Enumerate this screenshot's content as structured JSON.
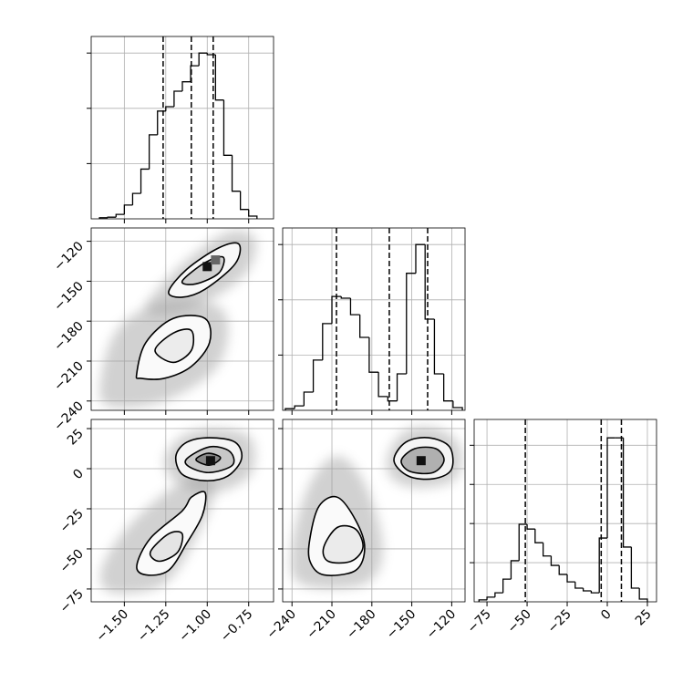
{
  "chart_data": [
    {
      "type": "histogram",
      "bins": [
        -1.65,
        -1.6,
        -1.55,
        -1.5,
        -1.45,
        -1.4,
        -1.35,
        -1.3,
        -1.25,
        -1.2,
        -1.15,
        -1.1,
        -1.05,
        -1.0,
        -0.95,
        -0.9,
        -0.85,
        -0.8,
        -0.75,
        -0.7
      ],
      "counts": [
        2,
        3,
        8,
        25,
        46,
        90,
        152,
        195,
        203,
        231,
        248,
        277,
        300,
        297,
        215,
        115,
        50,
        17,
        5
      ],
      "quantiles": [
        -1.266,
        -1.096,
        -0.964
      ],
      "xlim": [
        -1.7,
        -0.6
      ],
      "xticks": [
        {
          "value": -1.5,
          "label": "−1.50"
        },
        {
          "value": -1.25,
          "label": "−1.25"
        },
        {
          "value": -1.0,
          "label": "−1.00"
        },
        {
          "value": -0.75,
          "label": "−0.75"
        }
      ],
      "xticklabels": false,
      "ylim": [
        0,
        330
      ],
      "ygrid": [
        100,
        200,
        300
      ],
      "grid": true,
      "color": "#000000"
    },
    {
      "type": "contour",
      "xlim": [
        -1.7,
        -0.6
      ],
      "ylim": [
        -247,
        -110
      ],
      "xticks": [
        {
          "value": -1.5,
          "label": "−1.50"
        },
        {
          "value": -1.25,
          "label": "−1.25"
        },
        {
          "value": -1.0,
          "label": "−1.00"
        },
        {
          "value": -0.75,
          "label": "−0.75"
        }
      ],
      "yticks": [
        {
          "value": -120,
          "label": "−120"
        },
        {
          "value": -150,
          "label": "−150"
        },
        {
          "value": -180,
          "label": "−180"
        },
        {
          "value": -210,
          "label": "−210"
        },
        {
          "value": -240,
          "label": "−240"
        }
      ],
      "xticklabels": false,
      "yticklabels": true,
      "grid": true,
      "clouds": [
        {
          "x": [
            -1.37,
            -1.151,
            -0.876,
            -0.711,
            -0.766,
            -1.041,
            -1.288
          ],
          "y": [
            -168,
            -137,
            -113,
            -118,
            -144,
            -168,
            -175
          ]
        },
        {
          "x": [
            -1.645,
            -1.535,
            -1.233,
            -0.903,
            -0.931,
            -1.26,
            -1.59
          ],
          "y": [
            -226,
            -185,
            -165,
            -172,
            -213,
            -240,
            -244
          ]
        }
      ],
      "contours": [
        {
          "x": [
            -1.233,
            -1.123,
            -0.931,
            -0.81,
            -0.832,
            -1.013,
            -1.151
          ],
          "y": [
            -158,
            -141,
            -125,
            -122,
            -137,
            -156,
            -162
          ],
          "fill": "#f8f8f8"
        },
        {
          "x": [
            -1.151,
            -1.013,
            -0.903,
            -0.931,
            -1.068
          ],
          "y": [
            -150,
            -136,
            -132,
            -144,
            -152
          ],
          "fill": "#d0d0d0"
        },
        {
          "x": [
            -1.426,
            -1.37,
            -1.205,
            -1.013,
            -0.986,
            -1.096,
            -1.26,
            -1.398
          ],
          "y": [
            -220,
            -196,
            -178,
            -178,
            -196,
            -214,
            -223,
            -223
          ],
          "fill": "#fafafa"
        },
        {
          "x": [
            -1.315,
            -1.205,
            -1.096,
            -1.096,
            -1.205
          ],
          "y": [
            -202,
            -189,
            -187,
            -202,
            -211
          ],
          "fill": "#ececec"
        }
      ],
      "peaks": {
        "x": [
          -1.0,
          -0.95
        ],
        "y": [
          -139,
          -134
        ]
      }
    },
    {
      "type": "histogram",
      "bins": [
        -245,
        -238,
        -231,
        -224,
        -217,
        -210,
        -203,
        -196,
        -189,
        -182,
        -175,
        -168,
        -161,
        -154,
        -147,
        -140,
        -133,
        -126,
        -119,
        -112
      ],
      "counts": [
        3,
        8,
        33,
        91,
        157,
        206,
        203,
        173,
        132,
        69,
        25,
        17,
        66,
        248,
        300,
        165,
        66,
        17,
        5
      ],
      "quantiles": [
        -206.6,
        -166.9,
        -138.1
      ],
      "xlim": [
        -247,
        -110
      ],
      "xticks": [
        {
          "value": -240,
          "label": "−240"
        },
        {
          "value": -210,
          "label": "−210"
        },
        {
          "value": -180,
          "label": "−180"
        },
        {
          "value": -150,
          "label": "−150"
        },
        {
          "value": -120,
          "label": "−120"
        }
      ],
      "xticklabels": false,
      "ylim": [
        0,
        330
      ],
      "ygrid": [
        100,
        200,
        300
      ],
      "grid": true,
      "color": "#000000"
    },
    {
      "type": "contour",
      "xlim": [
        -1.7,
        -0.6
      ],
      "ylim": [
        -83,
        30.7
      ],
      "xticks": [
        {
          "value": -1.5,
          "label": "−1.50"
        },
        {
          "value": -1.25,
          "label": "−1.25"
        },
        {
          "value": -1.0,
          "label": "−1.00"
        },
        {
          "value": -0.75,
          "label": "−0.75"
        }
      ],
      "yticks": [
        25,
        0,
        {
          "value": -25,
          "label": "−25"
        },
        {
          "value": -50,
          "label": "−50"
        },
        {
          "value": -75,
          "label": "−75"
        }
      ],
      "xticklabels": true,
      "yticklabels": true,
      "grid": true,
      "clouds": [
        {
          "x": [
            -1.26,
            -1.151,
            -0.958,
            -0.738,
            -0.738,
            -0.958,
            -1.178
          ],
          "y": [
            5.1,
            20.4,
            25,
            19.3,
            -3.5,
            -15,
            -9.2
          ]
        },
        {
          "x": [
            -1.645,
            -1.535,
            -1.288,
            -1.041,
            -0.958,
            -1.068,
            -1.26,
            -1.563
          ],
          "y": [
            -66.2,
            -43.4,
            -17.8,
            -3.5,
            -14.9,
            -43.4,
            -71.9,
            -77.6
          ]
        }
      ],
      "contours": [
        {
          "x": [
            -1.189,
            -1.123,
            -0.986,
            -0.832,
            -0.793,
            -0.876,
            -1.013,
            -1.151
          ],
          "y": [
            7.9,
            16.5,
            19.3,
            16.5,
            6.2,
            -4.6,
            -7.5,
            -3.5
          ],
          "fill": "#f5f5f5"
        },
        {
          "x": [
            -1.123,
            -0.986,
            -0.865,
            -0.848,
            -0.986,
            -1.107
          ],
          "y": [
            6.2,
            13.6,
            10.8,
            2.2,
            -2.4,
            1.1
          ],
          "fill": "#c8c8c8"
        },
        {
          "x": [
            -1.068,
            -0.997,
            -0.92,
            -0.986
          ],
          "y": [
            5.6,
            9.6,
            6.8,
            2.2
          ],
          "fill": "#888888"
        },
        {
          "x": [
            -1.425,
            -1.343,
            -1.151,
            -1.096,
            -1.013,
            -1.03,
            -1.123,
            -1.233,
            -1.37
          ],
          "y": [
            -60.5,
            -43.4,
            -26.3,
            -17.8,
            -14.9,
            -29.2,
            -46.3,
            -63.4,
            -66.2
          ],
          "fill": "#fafafa"
        },
        {
          "x": [
            -1.343,
            -1.233,
            -1.151,
            -1.178,
            -1.288
          ],
          "y": [
            -52,
            -40.6,
            -40.6,
            -52,
            -57.7
          ],
          "fill": "#e4e4e4"
        }
      ],
      "peaks": {
        "x": [
          -0.98
        ],
        "y": [
          5
        ]
      }
    },
    {
      "type": "contour",
      "xlim": [
        -247,
        -110
      ],
      "ylim": [
        -83,
        30.7
      ],
      "xticks": [
        {
          "value": -240,
          "label": "−240"
        },
        {
          "value": -210,
          "label": "−210"
        },
        {
          "value": -180,
          "label": "−180"
        },
        {
          "value": -150,
          "label": "−150"
        },
        {
          "value": -120,
          "label": "−120"
        }
      ],
      "yticks": [
        25,
        0,
        {
          "value": -25,
          "label": "−25"
        },
        {
          "value": -50,
          "label": "−50"
        },
        {
          "value": -75,
          "label": "−75"
        }
      ],
      "xticklabels": true,
      "yticklabels": false,
      "grid": true,
      "clouds": [
        {
          "x": [
            -168.2,
            -154.5,
            -130.5,
            -113.4,
            -116.9,
            -144.3,
            -164.8
          ],
          "y": [
            7.9,
            23.9,
            25,
            13.6,
            -6.3,
            -12,
            -6.3
          ]
        },
        {
          "x": [
            -240.2,
            -226.5,
            -205.9,
            -185.4,
            -171.7,
            -185.4,
            -233.3
          ],
          "y": [
            -49.1,
            -9.2,
            7.9,
            -9.2,
            -49.1,
            -71.9,
            -71.9
          ]
        }
      ],
      "contours": [
        {
          "x": [
            -163.4,
            -154.5,
            -137.4,
            -121.6,
            -120.3,
            -134,
            -152.5
          ],
          "y": [
            5.1,
            16.5,
            19.3,
            13.6,
            -0.6,
            -6.3,
            -4.6
          ],
          "fill": "#f5f5f5"
        },
        {
          "x": [
            -157.9,
            -147.7,
            -132,
            -125.8,
            -134,
            -151.1
          ],
          "y": [
            5.1,
            12.5,
            12.5,
            5.1,
            -2.4,
            -1.8
          ],
          "fill": "#b0b0b0"
        },
        {
          "x": [
            -226.5,
            -219.7,
            -205.9,
            -192.2,
            -185.4,
            -192.2,
            -216.2,
            -226.5
          ],
          "y": [
            -43.4,
            -23.4,
            -17.8,
            -32.1,
            -49.1,
            -63.4,
            -66.2,
            -57.7
          ],
          "fill": "#fafafa"
        },
        {
          "x": [
            -216.2,
            -205.9,
            -192.2,
            -186.7,
            -195.6,
            -212.8
          ],
          "y": [
            -49.1,
            -36.6,
            -37.7,
            -49.1,
            -57.7,
            -57.7
          ],
          "fill": "#ebebeb"
        }
      ],
      "peaks": {
        "x": [
          -143
        ],
        "y": [
          5
        ]
      }
    },
    {
      "type": "histogram",
      "bins": [
        -80,
        -75,
        -70,
        -65,
        -60,
        -55,
        -50,
        -45,
        -40,
        -35,
        -30,
        -25,
        -20,
        -15,
        -10,
        -5,
        0,
        5,
        10,
        15,
        20,
        25
      ],
      "counts": [
        5,
        12,
        23,
        58,
        105,
        198,
        186,
        151,
        117,
        93,
        70,
        51,
        35,
        28,
        23,
        163,
        419,
        419,
        140,
        35,
        7
      ],
      "quantiles": [
        -51.1,
        -3.8,
        8.8
      ],
      "xlim": [
        -83,
        30.7
      ],
      "xticks": [
        {
          "value": -75,
          "label": "−75"
        },
        {
          "value": -50,
          "label": "−50"
        },
        {
          "value": -25,
          "label": "−25"
        },
        0,
        25
      ],
      "xticklabels": true,
      "ylim": [
        0,
        466
      ],
      "ygrid": [
        100,
        200,
        300,
        400
      ],
      "grid": true,
      "color": "#000000"
    }
  ]
}
